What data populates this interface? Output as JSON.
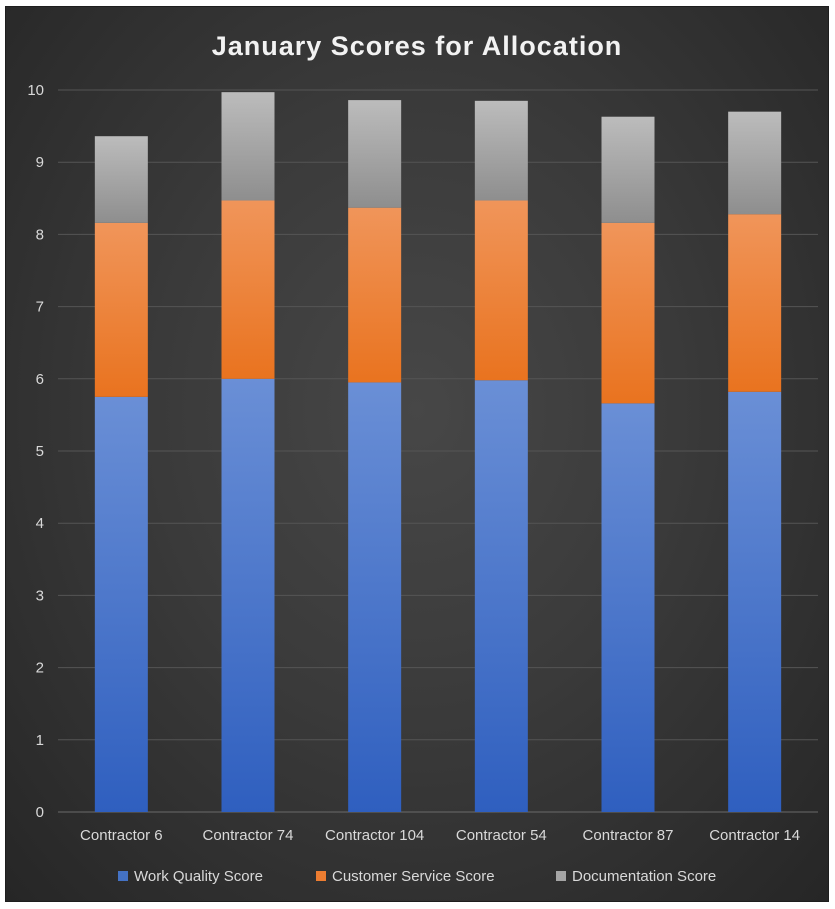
{
  "chart_data": {
    "type": "bar",
    "stacked": true,
    "title": "January Scores for Allocation",
    "categories": [
      "Contractor 6",
      "Contractor 74",
      "Contractor 104",
      "Contractor 54",
      "Contractor 87",
      "Contractor 14"
    ],
    "series": [
      {
        "name": "Work Quality Score",
        "color": "#4472c4",
        "values": [
          5.75,
          6.0,
          5.95,
          5.98,
          5.66,
          5.82
        ]
      },
      {
        "name": "Customer Service Score",
        "color": "#ed7d31",
        "values": [
          2.41,
          2.47,
          2.42,
          2.49,
          2.5,
          2.46
        ]
      },
      {
        "name": "Documentation Score",
        "color": "#a5a5a5",
        "values": [
          1.2,
          1.5,
          1.49,
          1.38,
          1.47,
          1.42
        ]
      }
    ],
    "ylim": [
      0,
      10
    ],
    "yticks": [
      0,
      1,
      2,
      3,
      4,
      5,
      6,
      7,
      8,
      9,
      10
    ],
    "grid": true,
    "legend_position": "bottom",
    "background": "#3c3c3c"
  }
}
